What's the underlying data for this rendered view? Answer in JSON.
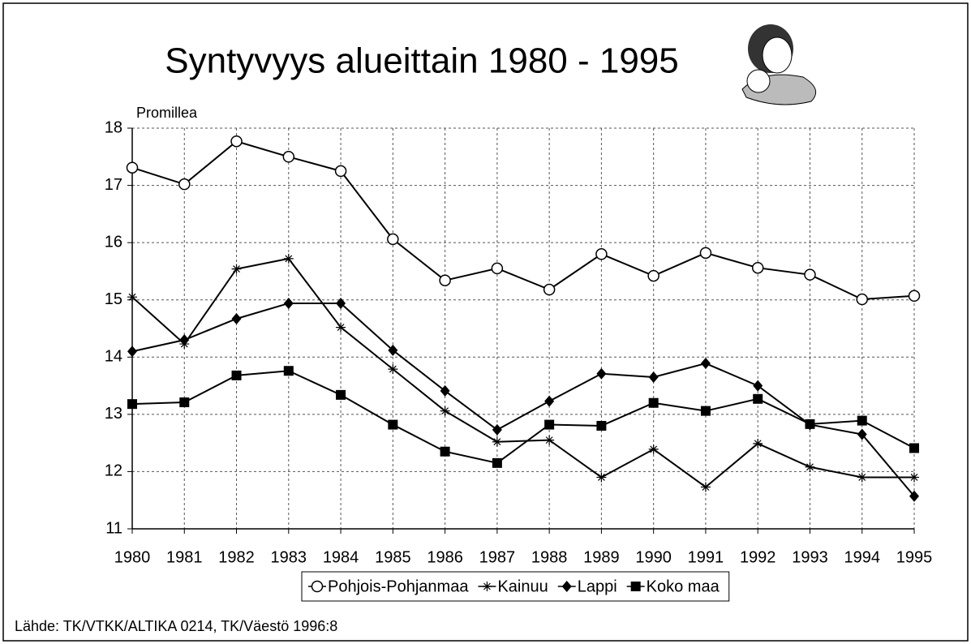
{
  "chart_data": {
    "type": "line",
    "title": "Syntyvyys alueittain 1980 - 1995",
    "y_label": "Promillea",
    "source": "Lähde: TK/VTKK/ALTIKA 0214, TK/Väestö 1996:8",
    "categories": [
      "1980",
      "1981",
      "1982",
      "1983",
      "1984",
      "1985",
      "1986",
      "1987",
      "1988",
      "1989",
      "1990",
      "1991",
      "1992",
      "1993",
      "1994",
      "1995"
    ],
    "series": [
      {
        "name": "Pohjois-Pohjanmaa",
        "color": "#000000",
        "marker": "circle",
        "values": [
          17.31,
          17.02,
          17.77,
          17.5,
          17.25,
          16.06,
          15.34,
          15.55,
          15.18,
          15.8,
          15.42,
          15.82,
          15.56,
          15.44,
          15.01,
          15.07
        ]
      },
      {
        "name": "Kainuu",
        "color": "#000000",
        "marker": "star",
        "values": [
          15.05,
          14.23,
          15.54,
          15.72,
          14.52,
          13.79,
          13.06,
          12.52,
          12.55,
          11.9,
          12.39,
          11.73,
          12.49,
          12.08,
          11.9,
          11.9
        ]
      },
      {
        "name": "Lappi",
        "color": "#000000",
        "marker": "diamond",
        "values": [
          14.1,
          14.3,
          14.67,
          14.94,
          14.94,
          14.12,
          13.41,
          12.73,
          13.23,
          13.71,
          13.65,
          13.89,
          13.5,
          12.82,
          12.65,
          11.57
        ]
      },
      {
        "name": "Koko maa",
        "color": "#000000",
        "marker": "square",
        "values": [
          13.18,
          13.21,
          13.68,
          13.76,
          13.34,
          12.82,
          12.35,
          12.15,
          12.82,
          12.8,
          13.2,
          13.06,
          13.27,
          12.83,
          12.89,
          12.41
        ]
      }
    ],
    "ylim": [
      11,
      18
    ],
    "yticks": [
      11,
      12,
      13,
      14,
      15,
      16,
      17,
      18
    ],
    "grid": true
  }
}
